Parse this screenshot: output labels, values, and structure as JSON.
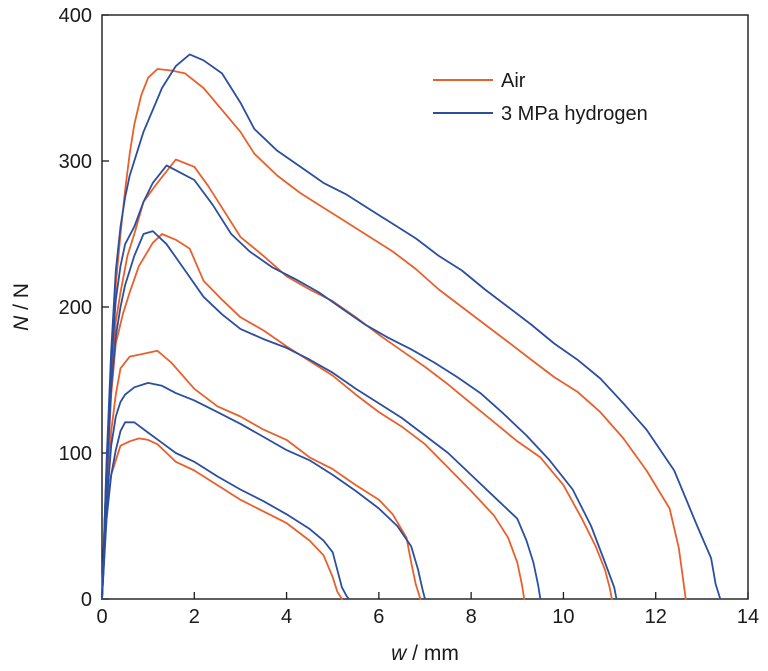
{
  "chart_data": {
    "type": "line",
    "title": "",
    "xlabel": {
      "var": "w",
      "unit": " / mm"
    },
    "ylabel": {
      "var": "N",
      "unit": " / N"
    },
    "xlim": [
      0,
      14
    ],
    "ylim": [
      0,
      400
    ],
    "xticks": [
      0,
      2,
      4,
      6,
      8,
      10,
      12,
      14
    ],
    "yticks": [
      0,
      100,
      200,
      300,
      400
    ],
    "grid": false,
    "legend_position": "top-right",
    "legend": [
      {
        "label": "Air",
        "color": "#e8602c"
      },
      {
        "label": "3 MPa hydrogen",
        "color": "#2b4fa0"
      }
    ],
    "series": [
      {
        "group": "Air",
        "color": "#e8602c",
        "x": [
          0,
          0.1,
          0.2,
          0.3,
          0.4,
          0.6,
          0.8,
          1.0,
          1.2,
          1.4,
          1.6,
          2.0,
          2.5,
          3.0,
          3.5,
          4.0,
          4.5,
          4.8,
          5.0,
          5.1,
          5.2
        ],
        "y": [
          0,
          60,
          85,
          95,
          105,
          108,
          110,
          109,
          106,
          100,
          94,
          88,
          78,
          68,
          60,
          52,
          40,
          30,
          15,
          5,
          0
        ]
      },
      {
        "group": "Air",
        "color": "#e8602c",
        "x": [
          0,
          0.1,
          0.2,
          0.3,
          0.4,
          0.6,
          0.9,
          1.2,
          1.5,
          2.0,
          2.5,
          3.0,
          3.5,
          4.0,
          4.5,
          5.0,
          5.5,
          6.0,
          6.3,
          6.6,
          6.7,
          6.8,
          6.9
        ],
        "y": [
          0,
          70,
          115,
          140,
          158,
          166,
          168,
          170,
          162,
          144,
          132,
          125,
          116,
          109,
          97,
          89,
          78,
          68,
          58,
          42,
          25,
          10,
          0
        ]
      },
      {
        "group": "Air",
        "color": "#e8602c",
        "x": [
          0,
          0.1,
          0.2,
          0.3,
          0.45,
          0.6,
          0.8,
          1.1,
          1.3,
          1.6,
          1.9,
          2.2,
          2.6,
          3.0,
          3.5,
          4.0,
          4.5,
          5.0,
          5.5,
          6.0,
          6.5,
          7.0,
          7.5,
          8.0,
          8.5,
          8.8,
          9.0,
          9.1,
          9.15
        ],
        "y": [
          0,
          80,
          140,
          175,
          195,
          210,
          228,
          244,
          250,
          246,
          240,
          218,
          205,
          193,
          184,
          173,
          163,
          153,
          140,
          128,
          118,
          106,
          90,
          74,
          57,
          42,
          25,
          10,
          0
        ]
      },
      {
        "group": "Air",
        "color": "#e8602c",
        "x": [
          0,
          0.1,
          0.2,
          0.3,
          0.4,
          0.55,
          0.7,
          0.9,
          1.2,
          1.6,
          2.0,
          2.3,
          2.6,
          3.0,
          3.5,
          4.0,
          4.5,
          5.0,
          5.5,
          6.0,
          6.5,
          7.0,
          7.5,
          8.0,
          8.5,
          9.0,
          9.5,
          10.0,
          10.4,
          10.7,
          10.9,
          11.0,
          11.05
        ],
        "y": [
          0,
          85,
          150,
          190,
          210,
          235,
          250,
          272,
          285,
          301,
          296,
          283,
          268,
          248,
          235,
          221,
          212,
          204,
          193,
          181,
          170,
          159,
          147,
          134,
          121,
          108,
          97,
          78,
          55,
          36,
          20,
          8,
          0
        ]
      },
      {
        "group": "Air",
        "color": "#e8602c",
        "x": [
          0,
          0.1,
          0.2,
          0.3,
          0.4,
          0.5,
          0.6,
          0.7,
          0.85,
          1.0,
          1.2,
          1.5,
          1.8,
          2.2,
          2.6,
          3.0,
          3.3,
          3.8,
          4.3,
          4.8,
          5.3,
          5.8,
          6.3,
          6.8,
          7.3,
          7.8,
          8.3,
          8.8,
          9.3,
          9.8,
          10.3,
          10.8,
          11.3,
          11.8,
          12.3,
          12.5,
          12.6,
          12.65
        ],
        "y": [
          0,
          90,
          160,
          215,
          250,
          280,
          305,
          325,
          345,
          357,
          363,
          362,
          360,
          350,
          335,
          320,
          305,
          290,
          278,
          268,
          258,
          248,
          238,
          226,
          212,
          200,
          188,
          176,
          164,
          152,
          142,
          128,
          110,
          88,
          62,
          35,
          12,
          0
        ]
      },
      {
        "group": "3 MPa hydrogen",
        "color": "#2b4fa0",
        "x": [
          0,
          0.1,
          0.2,
          0.3,
          0.4,
          0.5,
          0.7,
          1.0,
          1.3,
          1.6,
          2.0,
          2.5,
          3.0,
          3.5,
          4.0,
          4.5,
          4.8,
          5.0,
          5.1,
          5.2,
          5.3,
          5.35
        ],
        "y": [
          0,
          55,
          85,
          102,
          115,
          121,
          121,
          114,
          107,
          100,
          94,
          84,
          75,
          67,
          58,
          48,
          40,
          32,
          20,
          8,
          2,
          0
        ]
      },
      {
        "group": "3 MPa hydrogen",
        "color": "#2b4fa0",
        "x": [
          0,
          0.1,
          0.2,
          0.3,
          0.4,
          0.5,
          0.7,
          1.0,
          1.3,
          1.6,
          2.0,
          2.5,
          3.0,
          3.5,
          4.0,
          4.5,
          5.0,
          5.5,
          6.0,
          6.4,
          6.7,
          6.85,
          6.95,
          7.0
        ],
        "y": [
          0,
          65,
          105,
          125,
          135,
          140,
          145,
          148,
          146,
          141,
          136,
          128,
          120,
          111,
          102,
          95,
          85,
          74,
          62,
          50,
          36,
          20,
          6,
          0
        ]
      },
      {
        "group": "3 MPa hydrogen",
        "color": "#2b4fa0",
        "x": [
          0,
          0.1,
          0.2,
          0.3,
          0.4,
          0.5,
          0.7,
          0.9,
          1.1,
          1.4,
          1.8,
          2.2,
          2.6,
          3.0,
          3.5,
          4.0,
          4.5,
          5.0,
          5.5,
          6.0,
          6.5,
          7.0,
          7.5,
          8.0,
          8.5,
          9.0,
          9.2,
          9.35,
          9.45,
          9.5
        ],
        "y": [
          0,
          80,
          145,
          180,
          200,
          215,
          235,
          250,
          252,
          243,
          225,
          207,
          195,
          185,
          178,
          172,
          164,
          155,
          144,
          134,
          124,
          112,
          100,
          85,
          70,
          55,
          40,
          25,
          10,
          0
        ]
      },
      {
        "group": "3 MPa hydrogen",
        "color": "#2b4fa0",
        "x": [
          0,
          0.1,
          0.2,
          0.3,
          0.4,
          0.5,
          0.7,
          0.9,
          1.1,
          1.4,
          1.7,
          2.0,
          2.4,
          2.8,
          3.2,
          3.7,
          4.2,
          4.7,
          5.2,
          5.7,
          6.2,
          6.7,
          7.2,
          7.7,
          8.2,
          8.7,
          9.2,
          9.7,
          10.2,
          10.6,
          10.9,
          11.1,
          11.15
        ],
        "y": [
          0,
          90,
          160,
          205,
          228,
          243,
          255,
          272,
          285,
          297,
          292,
          287,
          270,
          250,
          238,
          227,
          219,
          210,
          199,
          188,
          179,
          171,
          162,
          152,
          141,
          127,
          112,
          95,
          75,
          50,
          25,
          8,
          0
        ]
      },
      {
        "group": "3 MPa hydrogen",
        "color": "#2b4fa0",
        "x": [
          0,
          0.1,
          0.2,
          0.3,
          0.4,
          0.5,
          0.6,
          0.75,
          0.9,
          1.1,
          1.3,
          1.6,
          1.9,
          2.2,
          2.6,
          3.0,
          3.3,
          3.8,
          4.3,
          4.8,
          5.3,
          5.8,
          6.3,
          6.8,
          7.3,
          7.8,
          8.3,
          8.8,
          9.3,
          9.8,
          10.3,
          10.8,
          11.3,
          11.8,
          12.4,
          12.9,
          13.2,
          13.3,
          13.4
        ],
        "y": [
          0,
          95,
          170,
          225,
          255,
          275,
          290,
          305,
          320,
          335,
          350,
          365,
          373,
          369,
          360,
          340,
          322,
          307,
          296,
          285,
          277,
          267,
          257,
          247,
          235,
          225,
          212,
          200,
          188,
          175,
          164,
          151,
          134,
          116,
          88,
          50,
          28,
          10,
          0
        ]
      }
    ]
  }
}
